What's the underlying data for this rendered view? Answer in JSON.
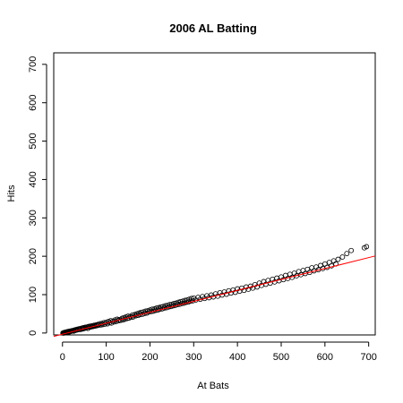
{
  "chart_data": {
    "type": "scatter",
    "title": "2006 AL Batting",
    "xlabel": "At Bats",
    "ylabel": "Hits",
    "xlim": [
      -20,
      715
    ],
    "ylim": [
      -5,
      730
    ],
    "xticks": [
      0,
      100,
      200,
      300,
      400,
      500,
      600,
      700
    ],
    "yticks": [
      0,
      100,
      200,
      300,
      400,
      500,
      600,
      700
    ],
    "grid": false,
    "fit_line": {
      "intercept": -3,
      "slope": 0.285,
      "color": "#ff0000"
    },
    "points": [
      [
        1,
        0
      ],
      [
        2,
        0
      ],
      [
        3,
        1
      ],
      [
        4,
        0
      ],
      [
        5,
        1
      ],
      [
        6,
        2
      ],
      [
        7,
        1
      ],
      [
        8,
        2
      ],
      [
        9,
        2
      ],
      [
        10,
        3
      ],
      [
        11,
        2
      ],
      [
        12,
        3
      ],
      [
        13,
        4
      ],
      [
        14,
        3
      ],
      [
        15,
        4
      ],
      [
        16,
        3
      ],
      [
        17,
        5
      ],
      [
        18,
        4
      ],
      [
        20,
        5
      ],
      [
        21,
        6
      ],
      [
        22,
        5
      ],
      [
        24,
        6
      ],
      [
        25,
        7
      ],
      [
        26,
        5
      ],
      [
        28,
        8
      ],
      [
        30,
        7
      ],
      [
        31,
        9
      ],
      [
        33,
        8
      ],
      [
        35,
        10
      ],
      [
        36,
        9
      ],
      [
        38,
        11
      ],
      [
        40,
        9
      ],
      [
        42,
        12
      ],
      [
        44,
        10
      ],
      [
        45,
        13
      ],
      [
        47,
        11
      ],
      [
        48,
        14
      ],
      [
        50,
        12
      ],
      [
        52,
        15
      ],
      [
        53,
        13
      ],
      [
        55,
        14
      ],
      [
        57,
        16
      ],
      [
        58,
        12
      ],
      [
        60,
        17
      ],
      [
        62,
        15
      ],
      [
        64,
        18
      ],
      [
        66,
        16
      ],
      [
        68,
        19
      ],
      [
        70,
        17
      ],
      [
        72,
        20
      ],
      [
        74,
        18
      ],
      [
        76,
        21
      ],
      [
        78,
        19
      ],
      [
        80,
        22
      ],
      [
        82,
        20
      ],
      [
        85,
        24
      ],
      [
        88,
        21
      ],
      [
        90,
        25
      ],
      [
        92,
        22
      ],
      [
        95,
        27
      ],
      [
        97,
        23
      ],
      [
        100,
        28
      ],
      [
        103,
        24
      ],
      [
        105,
        30
      ],
      [
        108,
        27
      ],
      [
        110,
        32
      ],
      [
        112,
        26
      ],
      [
        115,
        31
      ],
      [
        118,
        29
      ],
      [
        120,
        34
      ],
      [
        123,
        30
      ],
      [
        125,
        36
      ],
      [
        128,
        32
      ],
      [
        130,
        35
      ],
      [
        133,
        33
      ],
      [
        136,
        38
      ],
      [
        138,
        34
      ],
      [
        140,
        40
      ],
      [
        143,
        36
      ],
      [
        145,
        42
      ],
      [
        148,
        38
      ],
      [
        150,
        44
      ],
      [
        152,
        39
      ],
      [
        155,
        43
      ],
      [
        158,
        41
      ],
      [
        160,
        47
      ],
      [
        162,
        42
      ],
      [
        165,
        48
      ],
      [
        168,
        45
      ],
      [
        170,
        50
      ],
      [
        173,
        46
      ],
      [
        175,
        52
      ],
      [
        178,
        48
      ],
      [
        180,
        54
      ],
      [
        183,
        49
      ],
      [
        185,
        55
      ],
      [
        188,
        51
      ],
      [
        190,
        57
      ],
      [
        193,
        52
      ],
      [
        195,
        58
      ],
      [
        198,
        55
      ],
      [
        200,
        60
      ],
      [
        203,
        56
      ],
      [
        205,
        62
      ],
      [
        208,
        57
      ],
      [
        210,
        63
      ],
      [
        213,
        59
      ],
      [
        215,
        65
      ],
      [
        218,
        60
      ],
      [
        220,
        66
      ],
      [
        223,
        62
      ],
      [
        225,
        68
      ],
      [
        228,
        63
      ],
      [
        230,
        69
      ],
      [
        233,
        65
      ],
      [
        235,
        71
      ],
      [
        238,
        66
      ],
      [
        240,
        72
      ],
      [
        243,
        68
      ],
      [
        245,
        74
      ],
      [
        248,
        69
      ],
      [
        250,
        75
      ],
      [
        253,
        71
      ],
      [
        255,
        77
      ],
      [
        258,
        72
      ],
      [
        260,
        78
      ],
      [
        263,
        74
      ],
      [
        265,
        80
      ],
      [
        268,
        75
      ],
      [
        270,
        82
      ],
      [
        273,
        77
      ],
      [
        275,
        83
      ],
      [
        278,
        78
      ],
      [
        280,
        85
      ],
      [
        283,
        80
      ],
      [
        285,
        86
      ],
      [
        288,
        81
      ],
      [
        290,
        88
      ],
      [
        293,
        83
      ],
      [
        295,
        90
      ],
      [
        298,
        84
      ],
      [
        300,
        91
      ],
      [
        305,
        86
      ],
      [
        310,
        93
      ],
      [
        315,
        88
      ],
      [
        320,
        95
      ],
      [
        325,
        90
      ],
      [
        330,
        97
      ],
      [
        335,
        92
      ],
      [
        340,
        99
      ],
      [
        345,
        94
      ],
      [
        350,
        102
      ],
      [
        355,
        96
      ],
      [
        360,
        105
      ],
      [
        365,
        99
      ],
      [
        370,
        107
      ],
      [
        375,
        101
      ],
      [
        380,
        110
      ],
      [
        385,
        104
      ],
      [
        390,
        112
      ],
      [
        395,
        106
      ],
      [
        400,
        115
      ],
      [
        405,
        109
      ],
      [
        410,
        117
      ],
      [
        415,
        111
      ],
      [
        420,
        120
      ],
      [
        425,
        114
      ],
      [
        430,
        122
      ],
      [
        435,
        117
      ],
      [
        440,
        126
      ],
      [
        445,
        120
      ],
      [
        450,
        130
      ],
      [
        455,
        124
      ],
      [
        460,
        134
      ],
      [
        465,
        127
      ],
      [
        470,
        137
      ],
      [
        475,
        130
      ],
      [
        480,
        140
      ],
      [
        485,
        133
      ],
      [
        490,
        143
      ],
      [
        495,
        136
      ],
      [
        500,
        146
      ],
      [
        505,
        139
      ],
      [
        510,
        150
      ],
      [
        515,
        142
      ],
      [
        520,
        153
      ],
      [
        525,
        145
      ],
      [
        530,
        156
      ],
      [
        535,
        149
      ],
      [
        540,
        160
      ],
      [
        545,
        152
      ],
      [
        550,
        163
      ],
      [
        555,
        155
      ],
      [
        560,
        166
      ],
      [
        565,
        158
      ],
      [
        570,
        170
      ],
      [
        575,
        162
      ],
      [
        580,
        172
      ],
      [
        585,
        165
      ],
      [
        590,
        176
      ],
      [
        595,
        168
      ],
      [
        600,
        180
      ],
      [
        605,
        171
      ],
      [
        610,
        184
      ],
      [
        615,
        175
      ],
      [
        620,
        188
      ],
      [
        625,
        180
      ],
      [
        630,
        192
      ],
      [
        640,
        198
      ],
      [
        650,
        207
      ],
      [
        660,
        215
      ],
      [
        690,
        222
      ],
      [
        695,
        225
      ]
    ]
  }
}
